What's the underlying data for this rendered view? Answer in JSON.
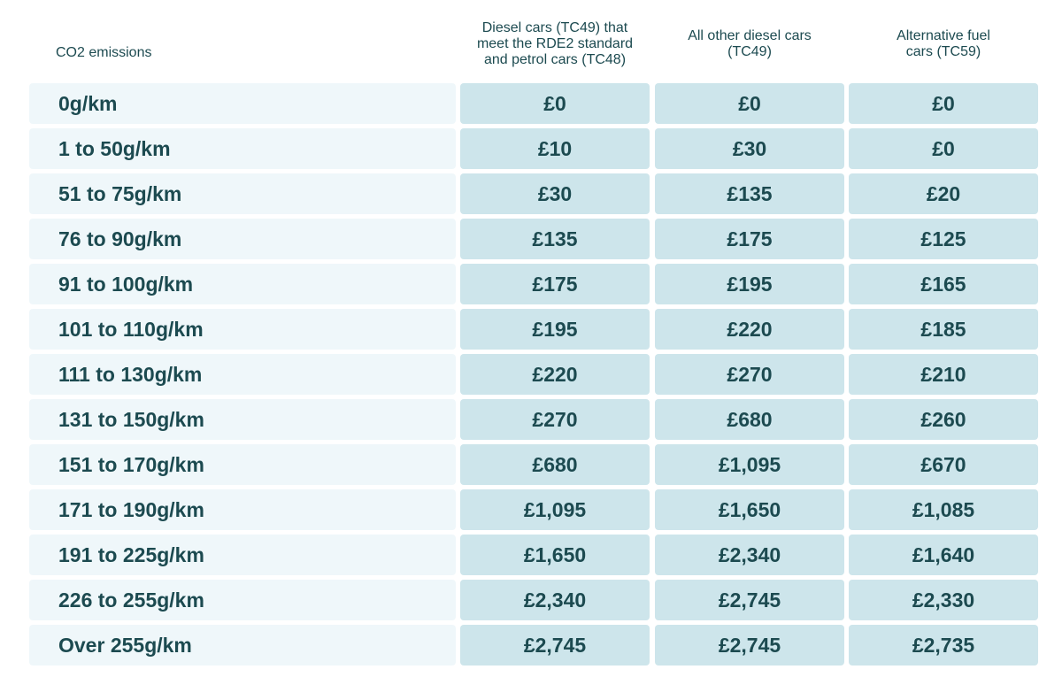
{
  "headers": {
    "emissions": "CO2 emissions",
    "col1": "Diesel cars (TC49) that\nmeet the RDE2 standard\nand petrol cars (TC48)",
    "col2": "All other diesel cars\n(TC49)",
    "col3": "Alternative fuel\ncars (TC59)"
  },
  "rows": [
    {
      "band": "0g/km",
      "c1": "£0",
      "c2": "£0",
      "c3": "£0"
    },
    {
      "band": "1 to 50g/km",
      "c1": "£10",
      "c2": "£30",
      "c3": "£0"
    },
    {
      "band": "51 to 75g/km",
      "c1": "£30",
      "c2": "£135",
      "c3": "£20"
    },
    {
      "band": "76 to 90g/km",
      "c1": "£135",
      "c2": "£175",
      "c3": "£125"
    },
    {
      "band": "91 to 100g/km",
      "c1": "£175",
      "c2": "£195",
      "c3": "£165"
    },
    {
      "band": "101 to 110g/km",
      "c1": "£195",
      "c2": "£220",
      "c3": "£185"
    },
    {
      "band": "111 to 130g/km",
      "c1": "£220",
      "c2": "£270",
      "c3": "£210"
    },
    {
      "band": "131 to 150g/km",
      "c1": "£270",
      "c2": "£680",
      "c3": "£260"
    },
    {
      "band": "151 to 170g/km",
      "c1": "£680",
      "c2": "£1,095",
      "c3": "£670"
    },
    {
      "band": "171 to 190g/km",
      "c1": "£1,095",
      "c2": "£1,650",
      "c3": "£1,085"
    },
    {
      "band": "191 to 225g/km",
      "c1": "£1,650",
      "c2": "£2,340",
      "c3": "£1,640"
    },
    {
      "band": "226 to 255g/km",
      "c1": "£2,340",
      "c2": "£2,745",
      "c3": "£2,330"
    },
    {
      "band": "Over 255g/km",
      "c1": "£2,745",
      "c2": "£2,745",
      "c3": "£2,735"
    }
  ],
  "colors": {
    "text": "#1c4a50",
    "label_bg": "#eff7fa",
    "value_bg": "#cde5eb"
  }
}
